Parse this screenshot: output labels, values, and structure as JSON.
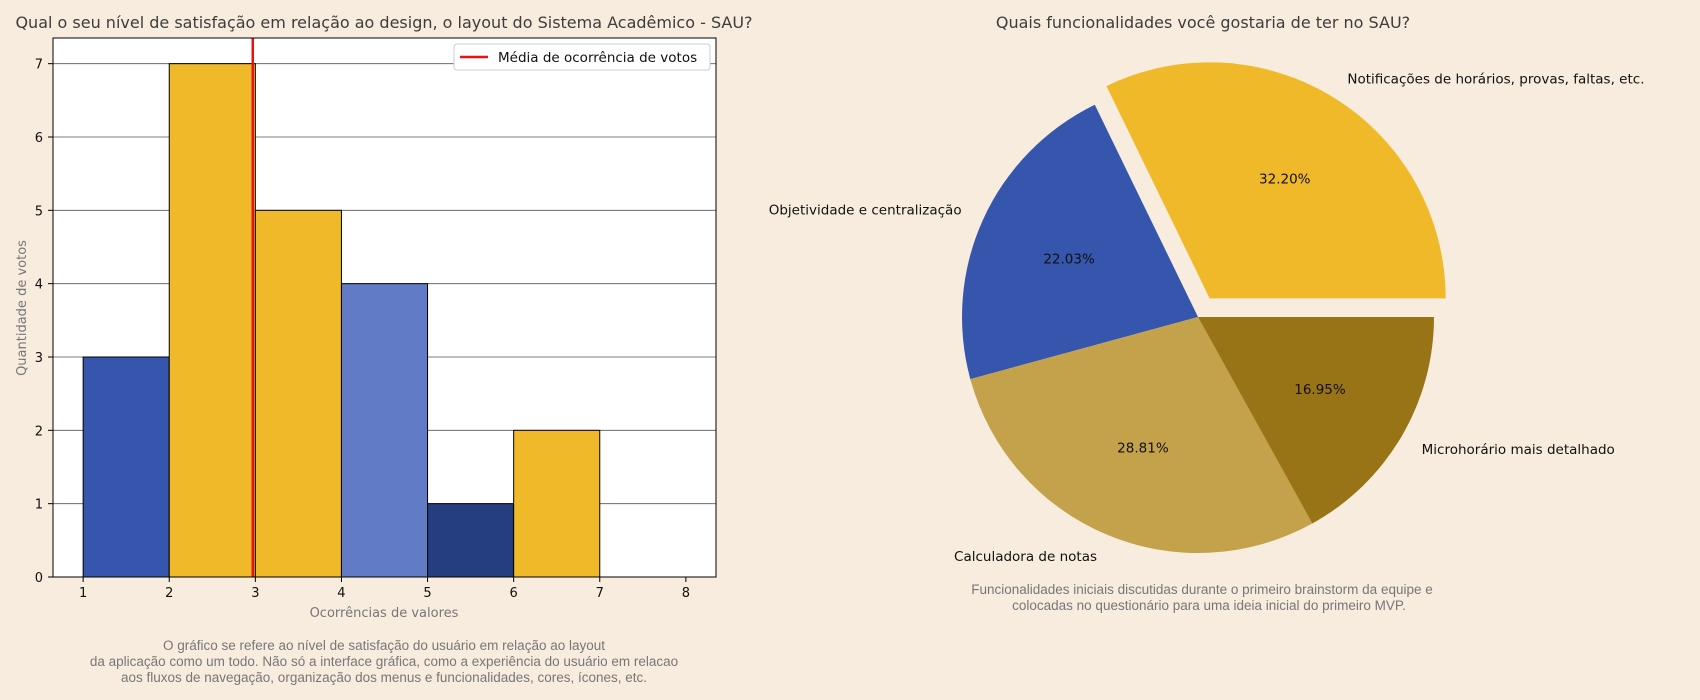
{
  "chart_data": [
    {
      "type": "bar",
      "title": "Qual o seu nível de satisfação em relação ao design, o layout do Sistema Acadêmico - SAU?",
      "xlabel": "Ocorrências de valores",
      "ylabel": "Quantidade de votos",
      "bins": [
        {
          "x0": 1,
          "x1": 2,
          "value": 3,
          "color": "#3655ac"
        },
        {
          "x0": 2,
          "x1": 3,
          "value": 7,
          "color": "#f0b929"
        },
        {
          "x0": 3,
          "x1": 4,
          "value": 5,
          "color": "#f0b929"
        },
        {
          "x0": 4,
          "x1": 5,
          "value": 4,
          "color": "#627bc6"
        },
        {
          "x0": 5,
          "x1": 6,
          "value": 1,
          "color": "#253e80"
        },
        {
          "x0": 6,
          "x1": 7,
          "value": 2,
          "color": "#f0b929"
        }
      ],
      "xticks": [
        1,
        2,
        3,
        4,
        5,
        6,
        7,
        8
      ],
      "yticks": [
        0,
        1,
        2,
        3,
        4,
        5,
        6,
        7
      ],
      "xlim": [
        0.65,
        8.35
      ],
      "ylim": [
        0,
        7.35
      ],
      "mean_line": {
        "x": 2.97,
        "color": "#ee1111"
      },
      "legend": {
        "label": "Média de ocorrência de votos",
        "position": "top-right"
      },
      "grid": "horizontal",
      "caption": [
        "O gráfico se refere ao nível de satisfação do usuário em relação ao layout",
        "da aplicação como um todo. Não só a interface gráfica, como a experiência do usuário em relacao",
        "aos fluxos de navegação, organização dos menus e funcionalidades, cores, ícones, etc."
      ]
    },
    {
      "type": "pie",
      "title": "Quais funcionalidades você gostaria de ter no SAU?",
      "slices": [
        {
          "label": "Notificações de horários, provas, faltas, etc.",
          "value": 32.2,
          "pct_label": "32.20%",
          "color": "#f0b929",
          "explode": true
        },
        {
          "label": "Objetividade e centralização",
          "value": 22.03,
          "pct_label": "22.03%",
          "color": "#3655ac",
          "explode": false
        },
        {
          "label": "Calculadora de notas",
          "value": 28.81,
          "pct_label": "28.81%",
          "color": "#c4a24b",
          "explode": false
        },
        {
          "label": "Microhorário mais detalhado",
          "value": 16.95,
          "pct_label": "16.95%",
          "color": "#997416",
          "explode": false
        }
      ],
      "caption": [
        "Funcionalidades iniciais discutidas durante o primeiro brainstorm da equipe e",
        "colocadas no questionário para uma ideia inicial do primeiro MVP."
      ]
    }
  ]
}
